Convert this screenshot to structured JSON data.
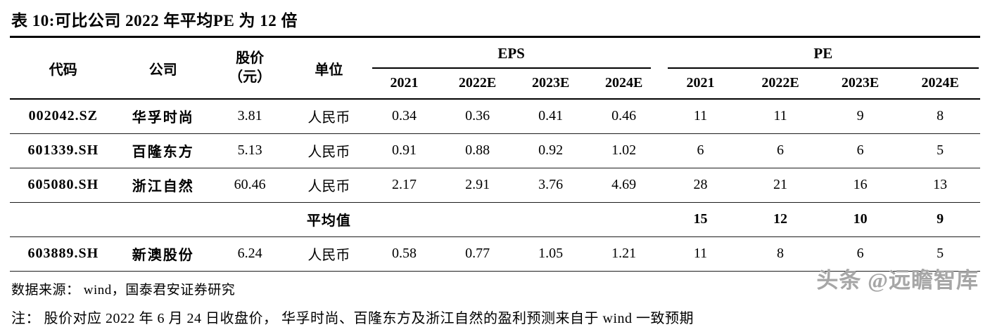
{
  "title": "表 10:可比公司 2022 年平均PE 为 12 倍",
  "table": {
    "headers": {
      "code": "代码",
      "company": "公司",
      "price_line1": "股价",
      "price_line2": "（元）",
      "unit": "单位",
      "eps_group": "EPS",
      "pe_group": "PE",
      "eps_years": [
        "2021",
        "2022E",
        "2023E",
        "2024E"
      ],
      "pe_years": [
        "2021",
        "2022E",
        "2023E",
        "2024E"
      ]
    },
    "rows": [
      {
        "code": "002042.SZ",
        "company": "华孚时尚",
        "price": "3.81",
        "unit": "人民币",
        "eps": [
          "0.34",
          "0.36",
          "0.41",
          "0.46"
        ],
        "pe": [
          "11",
          "11",
          "9",
          "8"
        ],
        "is_average": false
      },
      {
        "code": "601339.SH",
        "company": "百隆东方",
        "price": "5.13",
        "unit": "人民币",
        "eps": [
          "0.91",
          "0.88",
          "0.92",
          "1.02"
        ],
        "pe": [
          "6",
          "6",
          "6",
          "5"
        ],
        "is_average": false
      },
      {
        "code": "605080.SH",
        "company": "浙江自然",
        "price": "60.46",
        "unit": "人民币",
        "eps": [
          "2.17",
          "2.91",
          "3.76",
          "4.69"
        ],
        "pe": [
          "28",
          "21",
          "16",
          "13"
        ],
        "is_average": false
      },
      {
        "code": "",
        "company": "",
        "price": "",
        "unit": "平均值",
        "eps": [
          "",
          "",
          "",
          ""
        ],
        "pe": [
          "15",
          "12",
          "10",
          "9"
        ],
        "is_average": true
      },
      {
        "code": "603889.SH",
        "company": "新澳股份",
        "price": "6.24",
        "unit": "人民币",
        "eps": [
          "0.58",
          "0.77",
          "1.05",
          "1.21"
        ],
        "pe": [
          "11",
          "8",
          "6",
          "5"
        ],
        "is_average": false
      }
    ]
  },
  "footer": {
    "source": "数据来源： wind，国泰君安证券研究",
    "note": "注： 股价对应 2022 年 6 月 24 日收盘价， 华孚时尚、百隆东方及浙江自然的盈利预测来自于 wind 一致预期",
    "watermark": "头条 @远瞻智库"
  }
}
